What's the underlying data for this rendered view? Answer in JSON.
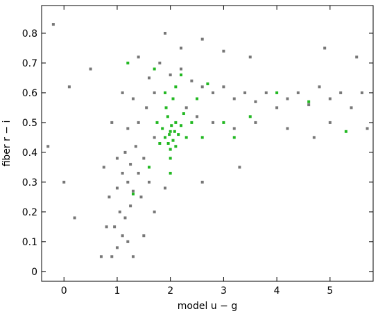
{
  "chart_data": {
    "type": "scatter",
    "xlabel": "model u − g",
    "ylabel": "fiber r − i",
    "xlim": [
      -0.42,
      5.81
    ],
    "ylim": [
      -0.033,
      0.893
    ],
    "xticks": [
      0,
      1,
      2,
      3,
      4,
      5
    ],
    "yticks": [
      0,
      0.1,
      0.2,
      0.3,
      0.4,
      0.5,
      0.6,
      0.7,
      0.8
    ],
    "series": [
      {
        "color": "#777777",
        "x": [
          0.9,
          1.0,
          1.1,
          0.95,
          1.2,
          1.05,
          1.15,
          1.25,
          0.85,
          1.0,
          1.2,
          1.3,
          1.1,
          1.25,
          1.4,
          1.0,
          1.15,
          1.35,
          1.5,
          1.6,
          1.45,
          1.7,
          0.8,
          0.75,
          1.3,
          1.5,
          0.7,
          1.9,
          1.2,
          1.4,
          1.55,
          1.7,
          1.3,
          1.6,
          1.8,
          2.0,
          2.2,
          2.4,
          2.6,
          2.8,
          3.0,
          3.2,
          3.4,
          3.6,
          3.8,
          4.0,
          4.2,
          4.4,
          4.6,
          4.8,
          5.0,
          5.2,
          5.4,
          5.6,
          2.5,
          2.8,
          3.2,
          3.6,
          4.2,
          5.0,
          2.2,
          2.6,
          3.0,
          1.9,
          1.4,
          0.9,
          1.1,
          2.3,
          1.7,
          -0.2,
          0.1,
          0.5,
          4.9,
          5.5,
          3.5,
          0.0,
          -0.3,
          0.2,
          2.6,
          3.3,
          4.7,
          5.7
        ],
        "values": [
          0.05,
          0.08,
          0.12,
          0.15,
          0.1,
          0.2,
          0.18,
          0.22,
          0.25,
          0.28,
          0.3,
          0.27,
          0.33,
          0.36,
          0.33,
          0.38,
          0.4,
          0.42,
          0.38,
          0.3,
          0.25,
          0.2,
          0.15,
          0.35,
          0.05,
          0.12,
          0.05,
          0.28,
          0.48,
          0.5,
          0.55,
          0.6,
          0.58,
          0.65,
          0.7,
          0.66,
          0.68,
          0.64,
          0.62,
          0.6,
          0.62,
          0.58,
          0.6,
          0.57,
          0.6,
          0.55,
          0.58,
          0.6,
          0.56,
          0.62,
          0.58,
          0.6,
          0.55,
          0.6,
          0.52,
          0.5,
          0.48,
          0.5,
          0.48,
          0.5,
          0.75,
          0.78,
          0.74,
          0.8,
          0.72,
          0.5,
          0.6,
          0.55,
          0.45,
          0.83,
          0.62,
          0.68,
          0.75,
          0.72,
          0.72,
          0.3,
          0.42,
          0.18,
          0.3,
          0.35,
          0.45,
          0.48
        ]
      },
      {
        "color": "#22b822",
        "x": [
          1.9,
          2.0,
          2.05,
          2.1,
          1.95,
          2.15,
          1.85,
          2.0,
          2.1,
          2.2,
          1.92,
          2.05,
          2.25,
          1.8,
          2.3,
          2.0,
          2.4,
          1.75,
          2.1,
          1.9,
          2.5,
          2.6,
          3.0,
          1.7,
          2.2,
          1.6,
          3.5,
          4.0,
          4.6,
          1.3,
          2.0,
          2.7,
          1.2,
          3.2,
          5.3,
          1.98,
          2.02,
          2.08,
          1.96
        ],
        "values": [
          0.45,
          0.47,
          0.44,
          0.5,
          0.52,
          0.46,
          0.48,
          0.41,
          0.42,
          0.49,
          0.55,
          0.58,
          0.53,
          0.43,
          0.45,
          0.38,
          0.5,
          0.5,
          0.62,
          0.6,
          0.58,
          0.45,
          0.5,
          0.68,
          0.66,
          0.35,
          0.52,
          0.6,
          0.57,
          0.26,
          0.33,
          0.63,
          0.7,
          0.45,
          0.47,
          0.46,
          0.49,
          0.47,
          0.43
        ]
      }
    ]
  }
}
